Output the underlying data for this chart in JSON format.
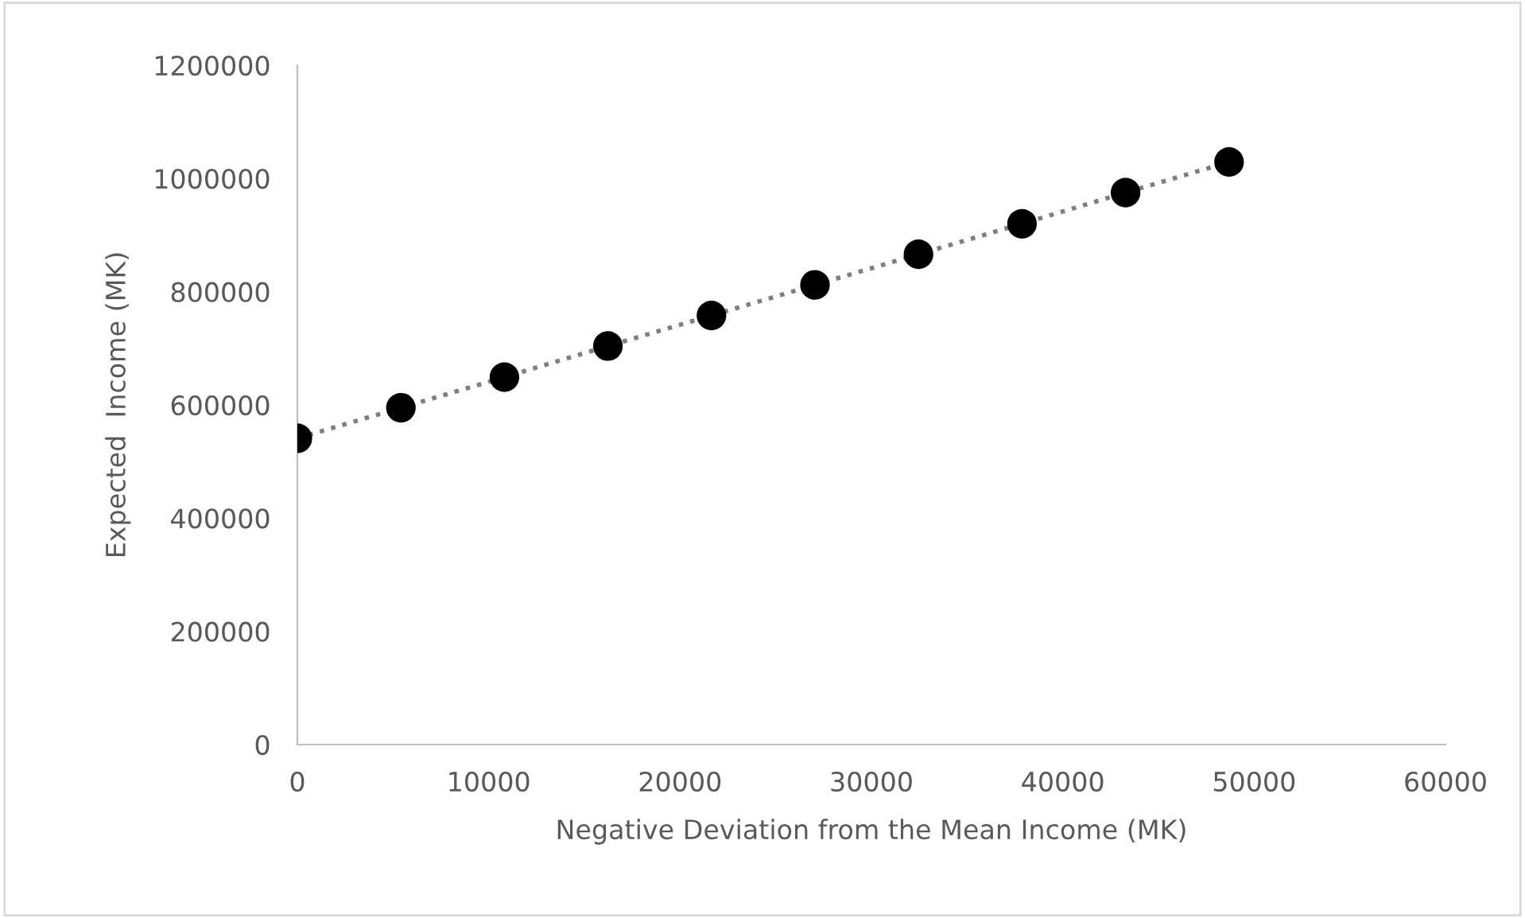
{
  "chart_data": {
    "type": "scatter",
    "xlabel": "Negative Deviation from the Mean Income (MK)",
    "ylabel": "Expected  Income (MK)",
    "x": [
      0,
      5410,
      10820,
      16230,
      21640,
      27050,
      32460,
      37870,
      43280,
      48690
    ],
    "series": [
      {
        "type": "line",
        "color": "#7f7f7f",
        "line_style": "dotted",
        "values": [
          541000,
          595000,
          649000,
          704000,
          758000,
          812000,
          866000,
          920000,
          975000,
          1029000
        ]
      },
      {
        "color": "#000000",
        "marker": "circle",
        "values": [
          541000,
          595000,
          649000,
          704000,
          758000,
          812000,
          866000,
          920000,
          975000,
          1029000
        ]
      }
    ],
    "xlim": [
      0,
      60000
    ],
    "xticks": [
      0,
      10000,
      20000,
      30000,
      40000,
      50000,
      60000
    ],
    "ylim": [
      0,
      1200000
    ],
    "yticks": [
      0,
      200000,
      400000,
      600000,
      800000,
      1000000,
      1200000
    ],
    "grid": false
  }
}
